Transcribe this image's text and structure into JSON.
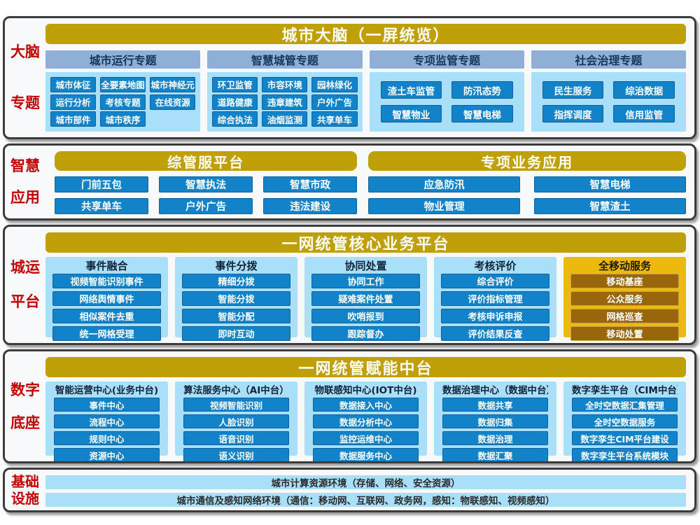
{
  "palette": {
    "gold_header": "#bfa009",
    "bright_gold": "#edb90f",
    "brown_button": "#9a660c",
    "blue_button": "#1283c8",
    "light_blue_panel": "#a9dff8",
    "steel_blue_header": "#8fafd6",
    "red_side_label": "#c00000"
  },
  "layers": {
    "brain": {
      "side_label": [
        "大脑",
        "专题"
      ],
      "title": "城市大脑（一屏统览）",
      "groups": [
        {
          "title": "城市运行专题",
          "items": [
            "城市体征",
            "全要素地图",
            "城市神经元",
            "运行分析",
            "考核专题",
            "在线资源",
            "城市部件",
            "城市秩序"
          ]
        },
        {
          "title": "智慧城管专题",
          "items": [
            "环卫监管",
            "市容环境",
            "园林绿化",
            "道路健康",
            "违章建筑",
            "户外广告",
            "综合执法",
            "油烟监测",
            "共享单车"
          ]
        },
        {
          "title": "专项监管专题",
          "items": [
            "渣土车监管",
            "防汛态势",
            "智慧物业",
            "智慧电梯"
          ]
        },
        {
          "title": "社会治理专题",
          "items": [
            "民生服务",
            "综治数据",
            "指挥调度",
            "信用监管"
          ]
        }
      ]
    },
    "apps": {
      "side_label": [
        "智慧",
        "应用"
      ],
      "sections": [
        {
          "title": "综管服平台",
          "rows": [
            [
              "门前五包",
              "智慧执法",
              "智慧市政"
            ],
            [
              "共享单车",
              "户外广告",
              "违法建设"
            ]
          ]
        },
        {
          "title": "专项业务应用",
          "rows": [
            [
              "应急防汛",
              "智慧电梯"
            ],
            [
              "物业管理",
              "智慧渣土"
            ]
          ]
        }
      ]
    },
    "platform": {
      "side_label": [
        "城运",
        "平台"
      ],
      "title": "一网统管核心业务平台",
      "groups": [
        {
          "title": "事件融合",
          "items": [
            "视频智能识别事件",
            "网络舆情事件",
            "相似案件去重",
            "统一网格受理"
          ],
          "more": "......"
        },
        {
          "title": "事件分拨",
          "items": [
            "精细分拨",
            "智能分拨",
            "智能分配",
            "即时互动"
          ],
          "more": "......"
        },
        {
          "title": "协同处置",
          "items": [
            "协同工作",
            "疑难案件处置",
            "吹哨报到",
            "跟踪督办"
          ],
          "more": "......"
        },
        {
          "title": "考核评价",
          "items": [
            "综合评价",
            "评价指标管理",
            "考核申诉申报",
            "评价结果反查"
          ],
          "more": "......"
        },
        {
          "title": "全移动服务",
          "items": [
            "移动基座",
            "公众服务",
            "网格巡查",
            "移动处置"
          ],
          "more": "......"
        }
      ]
    },
    "base": {
      "side_label": [
        "数字",
        "底座"
      ],
      "title": "一网统管赋能中台",
      "groups": [
        {
          "title": "智能运营中心(业务中台)",
          "items": [
            "事件中心",
            "流程中心",
            "规则中心",
            "资源中心"
          ]
        },
        {
          "title": "算法服务中心（AI中台）",
          "items": [
            "视频智能识别",
            "人脸识别",
            "语音识别",
            "语义识别"
          ]
        },
        {
          "title": "物联感知中心(IOT中台)",
          "items": [
            "数据接入中心",
            "数据分析中心",
            "监控运维中心",
            "数据服务中心"
          ]
        },
        {
          "title": "数据治理中心（数据中台）",
          "items": [
            "数据共享",
            "数据归集",
            "数据治理",
            "数据汇聚"
          ]
        },
        {
          "title": "数字孪生平台（CIM中台）",
          "items": [
            "全时空数据汇集管理",
            "全时空数据服务",
            "数字孪生CIM平台建设",
            "数字孪生平台系统模块"
          ]
        }
      ]
    },
    "infra": {
      "side_label": [
        "基础",
        "设施"
      ],
      "rows": [
        "城市计算资源环境（存储、网络、安全资源）",
        "城市通信及感知网络环境（通信：移动网、互联网、政务网，感知：物联感知、视频感知）"
      ]
    }
  }
}
